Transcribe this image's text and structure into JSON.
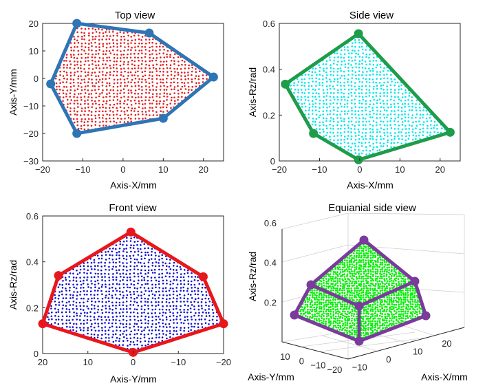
{
  "chart_data": [
    {
      "type": "scatter",
      "panel": "top",
      "title": "Top view",
      "xlabel": "Axis-X/mm",
      "ylabel": "Axis-Y/mm",
      "xlim": [
        -20,
        25
      ],
      "ylim": [
        -30,
        20
      ],
      "xticks": [
        -20,
        -10,
        0,
        10,
        20
      ],
      "yticks": [
        -30,
        -20,
        -10,
        0,
        10,
        20
      ],
      "hull": [
        [
          -11.5,
          20
        ],
        [
          6.5,
          16.5
        ],
        [
          22.5,
          0.5
        ],
        [
          10,
          -14.5
        ],
        [
          -11.5,
          -20
        ],
        [
          -18,
          -2
        ]
      ],
      "hull_color": "#2e75b6",
      "point_color": "#e02020"
    },
    {
      "type": "scatter",
      "panel": "side",
      "title": "Side view",
      "xlabel": "Axis-X/mm",
      "ylabel": "Axis-Rz/rad",
      "xlim": [
        -20,
        25
      ],
      "ylim": [
        0,
        0.6
      ],
      "xticks": [
        -20,
        -10,
        0,
        10,
        20
      ],
      "yticks": [
        0,
        0.2,
        0.4,
        0.6
      ],
      "hull": [
        [
          -0.3,
          0.555
        ],
        [
          22.5,
          0.125
        ],
        [
          -0.3,
          0.005
        ],
        [
          -11.5,
          0.12
        ],
        [
          -18.5,
          0.335
        ]
      ],
      "hull_color": "#1f9c4a",
      "point_color": "#00e5ee"
    },
    {
      "type": "scatter",
      "panel": "front",
      "title": "Front view",
      "xlabel": "Axis-Y/mm",
      "ylabel": "Axis-Rz/rad",
      "xlim": [
        20,
        -20
      ],
      "ylim": [
        0,
        0.6
      ],
      "xticks": [
        20,
        10,
        0,
        -10,
        -20
      ],
      "yticks": [
        0,
        0.2,
        0.4,
        0.6
      ],
      "hull": [
        [
          0.5,
          0.53
        ],
        [
          -15.5,
          0.335
        ],
        [
          -20,
          0.13
        ],
        [
          0,
          0.005
        ],
        [
          20,
          0.13
        ],
        [
          16.5,
          0.34
        ]
      ],
      "hull_color": "#e8171b",
      "point_color": "#1010d0"
    },
    {
      "type": "scatter",
      "panel": "equianial",
      "title": "Equianial side view",
      "xlabel": "Axis-X/mm",
      "ylabel": "Axis-Rz/rad",
      "ylabel2": "Axis-Y/mm",
      "zticks": [
        0.2,
        0.4,
        0.6
      ],
      "xticks": [
        -10,
        0,
        10,
        20
      ],
      "yticks": [
        10,
        0,
        -10,
        -20
      ],
      "hull_color": "#7a3b9c",
      "point_color": "#00ee00"
    }
  ]
}
